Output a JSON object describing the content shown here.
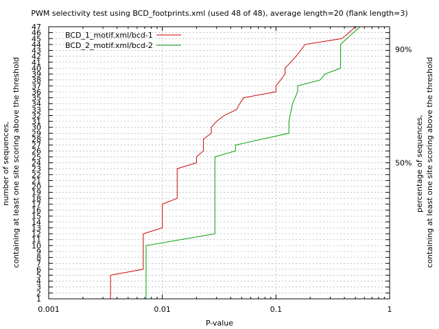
{
  "chart_data": {
    "type": "line",
    "title": "PWM selectivity test using BCD_footprints.xml (used 48 of 48), average length=20 (flank length=3)",
    "xlabel": "P-value",
    "ylabel_lines": [
      "number of sequences,",
      "containing at least one site scoring above the threshold"
    ],
    "y2label_lines": [
      "percentage of sequences,",
      "containing at least one site scoring above the threshold"
    ],
    "x_scale": "log",
    "xlim": [
      0.001,
      1
    ],
    "ylim": [
      1,
      47
    ],
    "x_ticks": [
      0.001,
      0.01,
      0.1,
      1
    ],
    "x_tick_labels": [
      "0.001",
      "0.01",
      "0.1",
      "1"
    ],
    "y_ticks": [
      1,
      2,
      3,
      4,
      5,
      6,
      7,
      8,
      9,
      10,
      11,
      12,
      13,
      14,
      15,
      16,
      17,
      18,
      19,
      20,
      21,
      22,
      23,
      24,
      25,
      26,
      27,
      28,
      29,
      30,
      31,
      32,
      33,
      34,
      35,
      36,
      37,
      38,
      39,
      40,
      41,
      42,
      43,
      44,
      45,
      46,
      47
    ],
    "y2_ticks": [
      {
        "value": 24,
        "label": "50%"
      },
      {
        "value": 43.2,
        "label": "90%"
      }
    ],
    "grid": true,
    "legend_position": "top-left",
    "series": [
      {
        "name": "BCD_1_motif.xml/bcd-1",
        "color": "#cc0000",
        "points": [
          [
            0.0035,
            0
          ],
          [
            0.0035,
            5
          ],
          [
            0.0068,
            6
          ],
          [
            0.0068,
            12
          ],
          [
            0.01,
            13
          ],
          [
            0.01,
            17
          ],
          [
            0.0135,
            18
          ],
          [
            0.0135,
            23
          ],
          [
            0.02,
            24
          ],
          [
            0.02,
            25
          ],
          [
            0.023,
            26
          ],
          [
            0.023,
            28
          ],
          [
            0.027,
            29
          ],
          [
            0.027,
            30
          ],
          [
            0.03,
            31
          ],
          [
            0.035,
            32
          ],
          [
            0.045,
            33
          ],
          [
            0.048,
            34
          ],
          [
            0.052,
            35
          ],
          [
            0.1,
            36
          ],
          [
            0.1,
            37
          ],
          [
            0.11,
            38
          ],
          [
            0.12,
            39
          ],
          [
            0.12,
            40
          ],
          [
            0.135,
            41
          ],
          [
            0.15,
            42
          ],
          [
            0.165,
            43
          ],
          [
            0.18,
            44
          ],
          [
            0.38,
            45
          ],
          [
            0.44,
            46
          ],
          [
            0.5,
            47
          ],
          [
            0.53,
            47.4
          ]
        ]
      },
      {
        "name": "BCD_2_motif.xml/bcd-2",
        "color": "#00a000",
        "points": [
          [
            0.0072,
            0
          ],
          [
            0.0072,
            10
          ],
          [
            0.029,
            12
          ],
          [
            0.029,
            25
          ],
          [
            0.044,
            26
          ],
          [
            0.044,
            27
          ],
          [
            0.13,
            29
          ],
          [
            0.13,
            31
          ],
          [
            0.14,
            34
          ],
          [
            0.155,
            36
          ],
          [
            0.155,
            37
          ],
          [
            0.245,
            38
          ],
          [
            0.27,
            39
          ],
          [
            0.37,
            40
          ],
          [
            0.37,
            44
          ],
          [
            0.42,
            45
          ],
          [
            0.48,
            46
          ],
          [
            0.55,
            47
          ],
          [
            0.62,
            47.4
          ]
        ]
      }
    ]
  }
}
